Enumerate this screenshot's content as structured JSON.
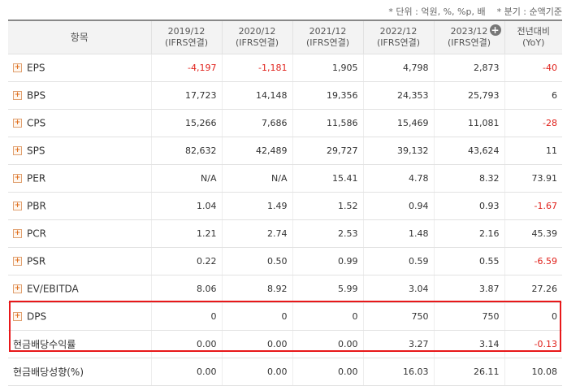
{
  "notes": {
    "unit": "* 단위 : 억원, %, %p, 배",
    "quarter": "* 분기 : 순액기준"
  },
  "header": {
    "item": "항목",
    "cols": [
      {
        "line1": "2019/12",
        "line2": "(IFRS연결)"
      },
      {
        "line1": "2020/12",
        "line2": "(IFRS연결)"
      },
      {
        "line1": "2021/12",
        "line2": "(IFRS연결)"
      },
      {
        "line1": "2022/12",
        "line2": "(IFRS연결)"
      },
      {
        "line1": "2023/12",
        "line2": "(IFRS연결)"
      },
      {
        "line1": "전년대비",
        "line2": "(YoY)"
      }
    ],
    "expand_icon": "plus-circle-icon"
  },
  "rows": [
    {
      "label": "EPS",
      "expand": true,
      "values": [
        "-4,197",
        "-1,181",
        "1,905",
        "4,798",
        "2,873",
        "-40"
      ]
    },
    {
      "label": "BPS",
      "expand": true,
      "values": [
        "17,723",
        "14,148",
        "19,356",
        "24,353",
        "25,793",
        "6"
      ]
    },
    {
      "label": "CPS",
      "expand": true,
      "values": [
        "15,266",
        "7,686",
        "11,586",
        "15,469",
        "11,081",
        "-28"
      ]
    },
    {
      "label": "SPS",
      "expand": true,
      "values": [
        "82,632",
        "42,489",
        "29,727",
        "39,132",
        "43,624",
        "11"
      ]
    },
    {
      "label": "PER",
      "expand": true,
      "values": [
        "N/A",
        "N/A",
        "15.41",
        "4.78",
        "8.32",
        "73.91"
      ]
    },
    {
      "label": "PBR",
      "expand": true,
      "values": [
        "1.04",
        "1.49",
        "1.52",
        "0.94",
        "0.93",
        "-1.67"
      ]
    },
    {
      "label": "PCR",
      "expand": true,
      "values": [
        "1.21",
        "2.74",
        "2.53",
        "1.48",
        "2.16",
        "45.39"
      ]
    },
    {
      "label": "PSR",
      "expand": true,
      "values": [
        "0.22",
        "0.50",
        "0.99",
        "0.59",
        "0.55",
        "-6.59"
      ]
    },
    {
      "label": "EV/EBITDA",
      "expand": true,
      "values": [
        "8.06",
        "8.92",
        "5.99",
        "3.04",
        "3.87",
        "27.26"
      ]
    },
    {
      "label": "DPS",
      "expand": true,
      "values": [
        "0",
        "0",
        "0",
        "750",
        "750",
        "0"
      ]
    },
    {
      "label": "현금배당수익률",
      "expand": false,
      "values": [
        "0.00",
        "0.00",
        "0.00",
        "3.27",
        "3.14",
        "-0.13"
      ]
    },
    {
      "label": "현금배당성향(%)",
      "expand": false,
      "values": [
        "0.00",
        "0.00",
        "0.00",
        "16.03",
        "26.11",
        "10.08"
      ]
    }
  ],
  "colors": {
    "negative": "#e0201a",
    "highlight": "#e8181a"
  }
}
